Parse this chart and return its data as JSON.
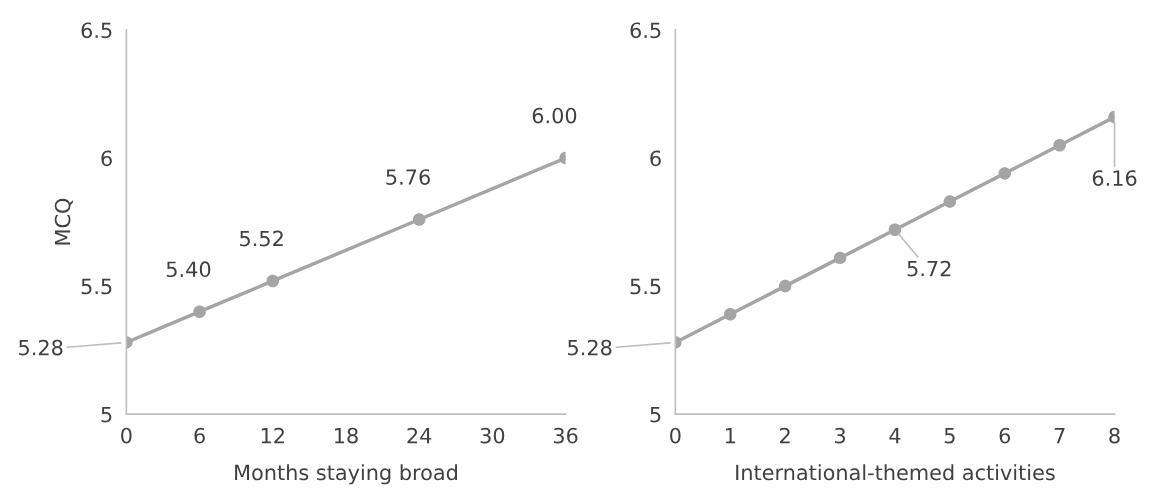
{
  "chart_data": [
    {
      "type": "line",
      "xlabel": "Months staying broad",
      "ylabel": "MCQ",
      "x": [
        0,
        6,
        12,
        24,
        36
      ],
      "xlim": [
        0,
        36
      ],
      "xticks": [
        0,
        6,
        12,
        18,
        24,
        30,
        36
      ],
      "ylim": [
        5,
        6.5
      ],
      "yticks": [
        5,
        5.5,
        6,
        6.5
      ],
      "grid": false,
      "marker": "circle",
      "line_style": "solid",
      "series": [
        {
          "color": "#a5a5a5",
          "values": [
            5.28,
            5.4,
            5.52,
            5.76,
            6.0
          ],
          "value_labels": [
            "5.28",
            "5.40",
            "5.52",
            "5.76",
            "6.00"
          ]
        }
      ]
    },
    {
      "type": "line",
      "xlabel": "International-themed activities",
      "x": [
        0,
        1,
        2,
        3,
        4,
        5,
        6,
        7,
        8
      ],
      "xlim": [
        0,
        8
      ],
      "xticks": [
        0,
        1,
        2,
        3,
        4,
        5,
        6,
        7,
        8
      ],
      "ylim": [
        5,
        6.5
      ],
      "yticks": [
        5,
        5.5,
        6,
        6.5
      ],
      "grid": false,
      "marker": "circle",
      "line_style": "solid",
      "series": [
        {
          "color": "#a5a5a5",
          "values": [
            5.28,
            5.39,
            5.5,
            5.61,
            5.72,
            5.83,
            5.94,
            6.05,
            6.16
          ],
          "value_labels": [
            "5.28",
            null,
            null,
            null,
            "5.72",
            null,
            null,
            null,
            "6.16"
          ]
        }
      ]
    }
  ]
}
